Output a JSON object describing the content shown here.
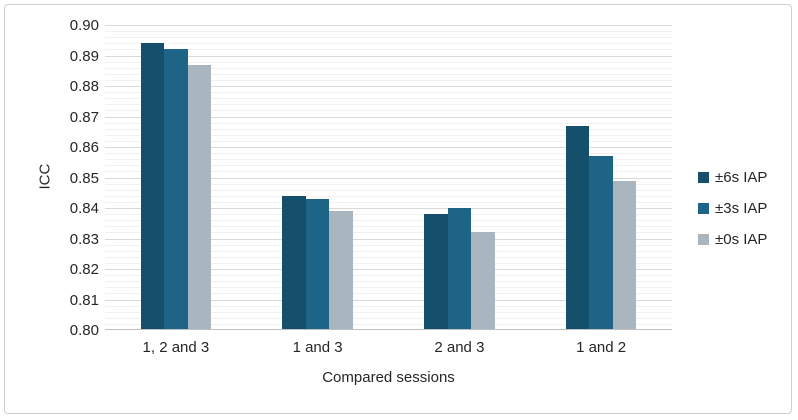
{
  "chart_data": {
    "type": "bar",
    "title": "",
    "categories": [
      "1, 2 and 3",
      "1 and 3",
      "2 and 3",
      "1 and 2"
    ],
    "series": [
      {
        "name": "±6s IAP",
        "color": "#14506b",
        "values": [
          0.894,
          0.844,
          0.838,
          0.867
        ]
      },
      {
        "name": "±3s IAP",
        "color": "#1d6486",
        "values": [
          0.892,
          0.843,
          0.84,
          0.857
        ]
      },
      {
        "name": "±0s IAP",
        "color": "#a9b5bf",
        "values": [
          0.887,
          0.839,
          0.832,
          0.849
        ]
      }
    ],
    "xlabel": "Compared sessions",
    "ylabel": "ICC",
    "ylim": [
      0.8,
      0.9
    ],
    "y_major_step": 0.01,
    "y_minor_step": 0.002,
    "y_ticks": [
      "0.90",
      "0.89",
      "0.88",
      "0.87",
      "0.86",
      "0.85",
      "0.84",
      "0.83",
      "0.82",
      "0.81",
      "0.80"
    ],
    "grid": true,
    "legend_position": "right",
    "colors": {
      "axis_line": "#bfbfbf",
      "major_grid": "#d9d9d9",
      "minor_grid": "#f1f1f1",
      "text": "#262626",
      "frame_border": "#cfcfcf",
      "background": "#ffffff"
    }
  }
}
